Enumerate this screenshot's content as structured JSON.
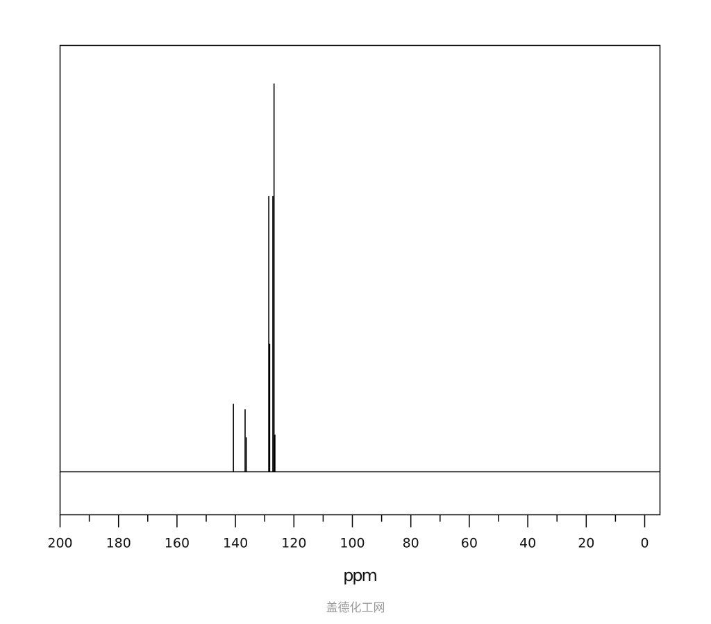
{
  "chart_data": {
    "type": "line",
    "title": "",
    "xlabel": "ppm",
    "ylabel": "",
    "xlim": [
      200,
      -5
    ],
    "x_reversed": true,
    "x_ticks_major": [
      200,
      180,
      160,
      140,
      120,
      100,
      80,
      60,
      40,
      20,
      0
    ],
    "x_ticks_minor": [
      190,
      170,
      150,
      130,
      110,
      90,
      70,
      50,
      30,
      10
    ],
    "grid": false,
    "line_color": "#000000",
    "peaks": [
      {
        "ppm": 140.7,
        "intensity": 0.175
      },
      {
        "ppm": 136.7,
        "intensity": 0.161
      },
      {
        "ppm": 136.3,
        "intensity": 0.089
      },
      {
        "ppm": 128.6,
        "intensity": 0.71
      },
      {
        "ppm": 128.3,
        "intensity": 0.33
      },
      {
        "ppm": 127.2,
        "intensity": 0.71
      },
      {
        "ppm": 126.8,
        "intensity": 1.0
      },
      {
        "ppm": 126.5,
        "intensity": 0.096
      }
    ]
  },
  "watermark": "盖德化工网"
}
